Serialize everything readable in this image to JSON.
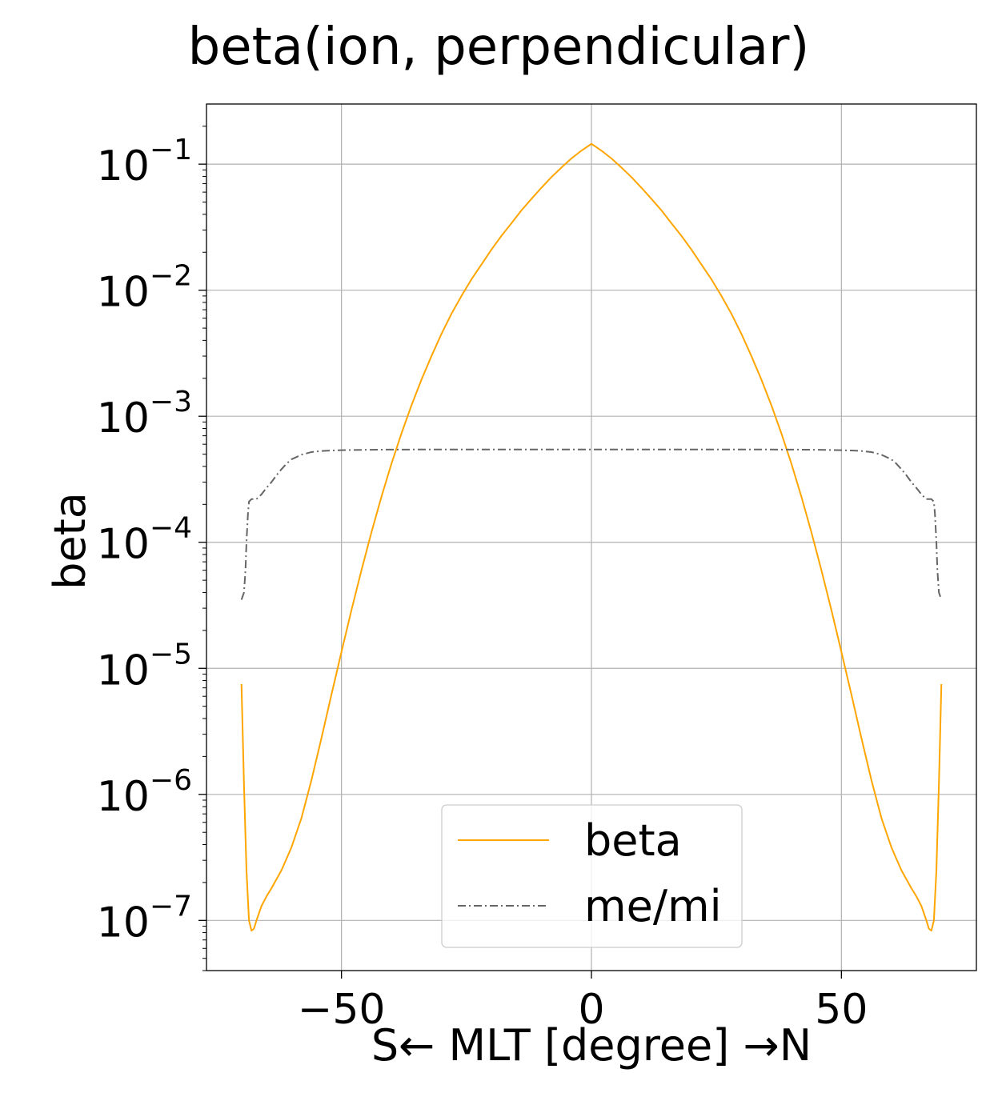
{
  "chart_data": {
    "type": "line",
    "title": "beta(ion, perpendicular)",
    "xlabel": "S← MLT [degree] →N",
    "ylabel": "beta",
    "xlim": [
      -77,
      77
    ],
    "ylim": [
      4e-08,
      0.3
    ],
    "yscale": "log",
    "grid": true,
    "legend_position": "lower center",
    "x_ticks": [
      -50,
      0,
      50
    ],
    "x_tick_labels": [
      "−50",
      "0",
      "50"
    ],
    "y_ticks": [
      1e-07,
      1e-06,
      1e-05,
      0.0001,
      0.001,
      0.01,
      0.1
    ],
    "y_tick_labels": [
      {
        "base": "10",
        "exp": "−7"
      },
      {
        "base": "10",
        "exp": "−6"
      },
      {
        "base": "10",
        "exp": "−5"
      },
      {
        "base": "10",
        "exp": "−4"
      },
      {
        "base": "10",
        "exp": "−3"
      },
      {
        "base": "10",
        "exp": "−2"
      },
      {
        "base": "10",
        "exp": "−1"
      }
    ],
    "series": [
      {
        "name": "beta",
        "color": "#FFA500",
        "style": "solid",
        "x": [
          -70,
          -69.5,
          -69,
          -68.5,
          -68,
          -67.5,
          -67,
          -66,
          -65,
          -64,
          -62,
          -60,
          -58,
          -56,
          -54,
          -52,
          -50,
          -48,
          -46,
          -44,
          -42,
          -40,
          -38,
          -36,
          -34,
          -32,
          -30,
          -28,
          -26,
          -24,
          -22,
          -20,
          -18,
          -16,
          -14,
          -12,
          -10,
          -8,
          -6,
          -4,
          -2,
          0,
          2,
          4,
          6,
          8,
          10,
          12,
          14,
          16,
          18,
          20,
          22,
          24,
          26,
          28,
          30,
          32,
          34,
          36,
          38,
          40,
          42,
          44,
          46,
          48,
          50,
          52,
          54,
          56,
          58,
          60,
          62,
          64,
          65,
          66,
          67,
          67.5,
          68,
          68.5,
          69,
          69.5,
          70
        ],
        "y": [
          7.5e-06,
          1.2e-06,
          2.5e-07,
          1e-07,
          8.3e-08,
          8.6e-08,
          1e-07,
          1.3e-07,
          1.55e-07,
          1.8e-07,
          2.5e-07,
          3.8e-07,
          6.5e-07,
          1.3e-06,
          2.8e-06,
          6.2e-06,
          1.35e-05,
          2.9e-05,
          6e-05,
          0.00012,
          0.00023,
          0.00042,
          0.00073,
          0.00122,
          0.00195,
          0.003,
          0.0045,
          0.0065,
          0.009,
          0.0122,
          0.016,
          0.021,
          0.027,
          0.034,
          0.043,
          0.053,
          0.065,
          0.079,
          0.094,
          0.111,
          0.128,
          0.145,
          0.128,
          0.111,
          0.094,
          0.079,
          0.065,
          0.053,
          0.043,
          0.034,
          0.027,
          0.021,
          0.016,
          0.0122,
          0.009,
          0.0065,
          0.0045,
          0.003,
          0.00195,
          0.00122,
          0.00073,
          0.00042,
          0.00023,
          0.00012,
          6e-05,
          2.9e-05,
          1.35e-05,
          6.2e-06,
          2.8e-06,
          1.3e-06,
          6.5e-07,
          3.8e-07,
          2.5e-07,
          1.8e-07,
          1.55e-07,
          1.3e-07,
          1e-07,
          8.6e-08,
          8.3e-08,
          1e-07,
          2.5e-07,
          1.2e-06,
          7.5e-06
        ]
      },
      {
        "name": "me/mi",
        "color": "#666666",
        "style": "dashdot",
        "x": [
          -70,
          -69.5,
          -69.2,
          -69,
          -68.7,
          -68.5,
          -68,
          -67,
          -66,
          -65,
          -64,
          -63,
          -62,
          -61,
          -60,
          -58,
          -56,
          -54,
          -52,
          -50,
          -45,
          -40,
          -30,
          -20,
          -10,
          0,
          10,
          20,
          30,
          40,
          45,
          50,
          52,
          54,
          56,
          58,
          60,
          61,
          62,
          63,
          64,
          65,
          66,
          67,
          68,
          68.5,
          68.7,
          69,
          69.2,
          69.5,
          70
        ],
        "y": [
          3.5e-05,
          4e-05,
          6e-05,
          0.0001,
          0.00017,
          0.00021,
          0.00022,
          0.00022,
          0.00024,
          0.00027,
          0.0003,
          0.00034,
          0.00038,
          0.00042,
          0.000455,
          0.000495,
          0.00052,
          0.00053,
          0.000535,
          0.000538,
          0.000542,
          0.000544,
          0.000545,
          0.000545,
          0.000545,
          0.000545,
          0.000545,
          0.000545,
          0.000545,
          0.000544,
          0.000542,
          0.000538,
          0.000535,
          0.00053,
          0.00052,
          0.000495,
          0.000455,
          0.00042,
          0.00038,
          0.00034,
          0.0003,
          0.00027,
          0.00024,
          0.00022,
          0.00022,
          0.00021,
          0.00017,
          0.0001,
          6e-05,
          4e-05,
          3.5e-05
        ]
      }
    ]
  }
}
